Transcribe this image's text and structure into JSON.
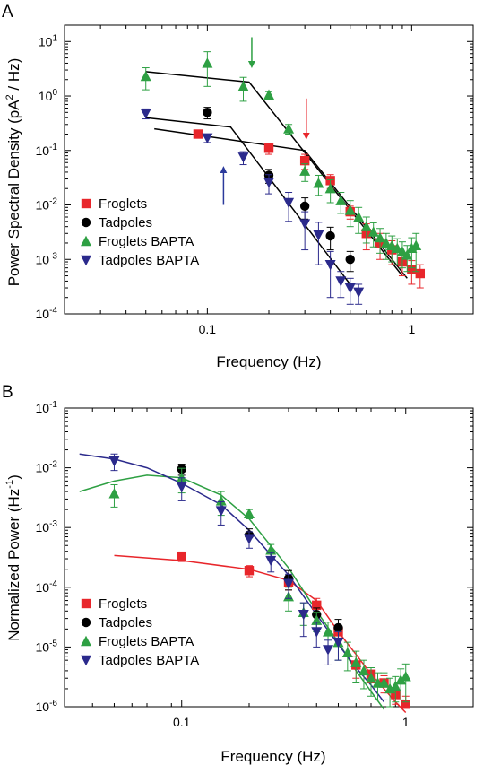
{
  "colors": {
    "froglets": "#e8262b",
    "tadpoles": "#000000",
    "froglets_bapta": "#2ea043",
    "tadpoles_bapta": "#2b2a8c",
    "fit_black": "#000000",
    "arrow_green": "#2ea043",
    "arrow_red": "#e8262b",
    "arrow_blue": "#2b3a9c"
  },
  "chart_data": [
    {
      "panel_letter": "A",
      "type": "scatter",
      "xscale": "log",
      "yscale": "log",
      "xlim": [
        0.02,
        2.0
      ],
      "ylim": [
        0.0001,
        20
      ],
      "xlabel": "Frequency (Hz)",
      "ylabel": "Power Spectral Density (pA",
      "ylabel_sup": "2",
      "ylabel_end": " / Hz)",
      "xticks": [
        {
          "v": 0.1,
          "label": "0.1"
        },
        {
          "v": 1,
          "label": "1"
        }
      ],
      "yticks": [
        {
          "v": 10,
          "base": "10",
          "exp": "1"
        },
        {
          "v": 1,
          "base": "10",
          "exp": "0"
        },
        {
          "v": 0.1,
          "base": "10",
          "exp": "-1"
        },
        {
          "v": 0.01,
          "base": "10",
          "exp": "-2"
        },
        {
          "v": 0.001,
          "base": "10",
          "exp": "-3"
        },
        {
          "v": 0.0001,
          "base": "10",
          "exp": "-4"
        }
      ],
      "legend_position": "bottom-left",
      "series": [
        {
          "name": "Froglets",
          "marker": "square",
          "color_key": "froglets",
          "x": [
            0.09,
            0.2,
            0.3,
            0.4,
            0.5,
            0.6,
            0.7,
            0.8,
            0.9,
            1.0,
            1.1
          ],
          "y": [
            0.2,
            0.11,
            0.065,
            0.028,
            0.0075,
            0.003,
            0.002,
            0.0015,
            0.0009,
            0.00065,
            0.00055
          ],
          "err": [
            0.03,
            0.025,
            0.02,
            0.008,
            0.002,
            0.0015,
            0.001,
            0.0007,
            0.0004,
            0.0003,
            0.00025
          ]
        },
        {
          "name": "Tadpoles",
          "marker": "circle",
          "color_key": "tadpoles",
          "x": [
            0.1,
            0.2,
            0.3,
            0.4,
            0.5
          ],
          "y": [
            0.5,
            0.035,
            0.0095,
            0.0027,
            0.001
          ],
          "err": [
            0.12,
            0.01,
            0.004,
            0.0012,
            0.0004
          ]
        },
        {
          "name": "Froglets BAPTA",
          "marker": "triangle-up",
          "color_key": "froglets_bapta",
          "x": [
            0.05,
            0.1,
            0.15,
            0.2,
            0.25,
            0.3,
            0.35,
            0.4,
            0.45,
            0.5,
            0.55,
            0.6,
            0.65,
            0.7,
            0.75,
            0.8,
            0.85,
            0.9,
            0.95,
            1.0,
            1.05
          ],
          "y": [
            2.3,
            4.0,
            1.5,
            1.05,
            0.25,
            0.042,
            0.025,
            0.02,
            0.012,
            0.008,
            0.006,
            0.004,
            0.0032,
            0.0025,
            0.002,
            0.0018,
            0.0016,
            0.0014,
            0.0012,
            0.0016,
            0.0018
          ],
          "err": [
            1.0,
            2.5,
            0.7,
            0.15,
            0.05,
            0.015,
            0.01,
            0.009,
            0.005,
            0.004,
            0.003,
            0.002,
            0.0015,
            0.0012,
            0.001,
            0.0009,
            0.0008,
            0.0007,
            0.0006,
            0.0009,
            0.0012
          ]
        },
        {
          "name": "Tadpoles BAPTA",
          "marker": "triangle-down",
          "color_key": "tadpoles_bapta",
          "x": [
            0.05,
            0.1,
            0.15,
            0.2,
            0.25,
            0.3,
            0.35,
            0.4,
            0.45,
            0.5,
            0.55
          ],
          "y": [
            0.48,
            0.17,
            0.075,
            0.026,
            0.011,
            0.0045,
            0.0028,
            0.0008,
            0.0004,
            0.0003,
            0.00025
          ],
          "err": [
            0.1,
            0.03,
            0.02,
            0.01,
            0.006,
            0.003,
            0.002,
            0.0006,
            0.0002,
            0.00015,
            0.0001
          ]
        }
      ],
      "fit_lines": [
        {
          "color_key": "fit_black",
          "points": [
            [
              0.05,
              2.8
            ],
            [
              0.16,
              1.8
            ],
            [
              0.9,
              0.0005
            ]
          ]
        },
        {
          "color_key": "fit_black",
          "points": [
            [
              0.05,
              0.4
            ],
            [
              0.13,
              0.27
            ],
            [
              0.5,
              0.00035
            ]
          ]
        },
        {
          "color_key": "fit_black",
          "points": [
            [
              0.055,
              0.25
            ],
            [
              0.3,
              0.1
            ],
            [
              0.95,
              0.00045
            ]
          ]
        }
      ],
      "arrows": [
        {
          "color_key": "arrow_green",
          "x": 0.165,
          "from_y": 12,
          "to_y": 3.5
        },
        {
          "color_key": "arrow_red",
          "x": 0.305,
          "from_y": 0.9,
          "to_y": 0.17
        },
        {
          "color_key": "arrow_blue",
          "x": 0.12,
          "from_y": 0.01,
          "to_y": 0.048
        }
      ]
    },
    {
      "panel_letter": "B",
      "type": "scatter",
      "xscale": "log",
      "yscale": "log",
      "xlim": [
        0.03,
        2.0
      ],
      "ylim": [
        1e-06,
        0.1
      ],
      "xlabel": "Frequency (Hz)",
      "ylabel": "Normalized Power (Hz",
      "ylabel_sup": "-1",
      "ylabel_end": ")",
      "xticks": [
        {
          "v": 0.1,
          "label": "0.1"
        },
        {
          "v": 1,
          "label": "1"
        }
      ],
      "yticks": [
        {
          "v": 0.1,
          "base": "10",
          "exp": "-1"
        },
        {
          "v": 0.01,
          "base": "10",
          "exp": "-2"
        },
        {
          "v": 0.001,
          "base": "10",
          "exp": "-3"
        },
        {
          "v": 0.0001,
          "base": "10",
          "exp": "-4"
        },
        {
          "v": 1e-05,
          "base": "10",
          "exp": "-5"
        },
        {
          "v": 1e-06,
          "base": "10",
          "exp": "-6"
        }
      ],
      "legend_position": "bottom-left",
      "series": [
        {
          "name": "Froglets",
          "marker": "square",
          "color_key": "froglets",
          "x": [
            0.1,
            0.2,
            0.3,
            0.4,
            0.5,
            0.6,
            0.7,
            0.8,
            0.9,
            1.0
          ],
          "y": [
            0.00033,
            0.00019,
            0.00012,
            5e-05,
            1.8e-05,
            5e-06,
            3.5e-06,
            2.5e-06,
            1.6e-06,
            1.1e-06
          ],
          "err": [
            6e-05,
            4e-05,
            3e-05,
            1.5e-05,
            5e-06,
            2e-06,
            1e-06,
            8e-07,
            5e-07,
            4e-07
          ]
        },
        {
          "name": "Tadpoles",
          "marker": "circle",
          "color_key": "tadpoles",
          "x": [
            0.1,
            0.2,
            0.3,
            0.4,
            0.5
          ],
          "y": [
            0.0095,
            0.00075,
            0.00014,
            3.5e-05,
            2.1e-05
          ],
          "err": [
            0.002,
            0.0002,
            5e-05,
            1e-05,
            8e-06
          ]
        },
        {
          "name": "Froglets BAPTA",
          "marker": "triangle-up",
          "color_key": "froglets_bapta",
          "x": [
            0.05,
            0.1,
            0.15,
            0.2,
            0.25,
            0.3,
            0.35,
            0.4,
            0.45,
            0.5,
            0.55,
            0.6,
            0.65,
            0.7,
            0.75,
            0.8,
            0.85,
            0.9,
            0.95,
            1.0
          ],
          "y": [
            0.0037,
            0.0068,
            0.0028,
            0.0017,
            0.00042,
            7e-05,
            3.8e-05,
            2.8e-05,
            1.8e-05,
            1.2e-05,
            8e-06,
            5.5e-06,
            4e-06,
            3e-06,
            2.5e-06,
            2.5e-06,
            2e-06,
            2.2e-06,
            2.8e-06,
            3.2e-06
          ],
          "err": [
            0.0015,
            0.003,
            0.0012,
            0.0003,
            0.0001,
            3e-05,
            1.5e-05,
            1e-05,
            8e-06,
            6e-06,
            4e-06,
            3e-06,
            2e-06,
            1.5e-06,
            1.2e-06,
            1.2e-06,
            1e-06,
            1e-06,
            1.5e-06,
            2e-06
          ]
        },
        {
          "name": "Tadpoles BAPTA",
          "marker": "triangle-down",
          "color_key": "tadpoles_bapta",
          "x": [
            0.05,
            0.1,
            0.15,
            0.2,
            0.25,
            0.3,
            0.35,
            0.4,
            0.45,
            0.5
          ],
          "y": [
            0.013,
            0.0048,
            0.0019,
            0.00065,
            0.00028,
            0.000115,
            3.5e-05,
            1.8e-05,
            9e-06,
            1.2e-05
          ],
          "err": [
            0.004,
            0.002,
            0.0008,
            0.0002,
            0.0001,
            5e-05,
            2e-05,
            8e-06,
            4e-06,
            6e-06
          ]
        }
      ],
      "fit_curves": [
        {
          "color_key": "froglets",
          "points": [
            [
              0.05,
              0.00034
            ],
            [
              0.1,
              0.00028
            ],
            [
              0.2,
              0.0002
            ],
            [
              0.3,
              0.00013
            ],
            [
              0.4,
              6e-05
            ],
            [
              0.5,
              1.8e-05
            ],
            [
              0.6,
              7.5e-06
            ],
            [
              0.7,
              3.5e-06
            ],
            [
              0.8,
              2e-06
            ],
            [
              0.9,
              1.2e-06
            ],
            [
              1.0,
              8e-07
            ]
          ]
        },
        {
          "color_key": "froglets_bapta",
          "points": [
            [
              0.035,
              0.004
            ],
            [
              0.05,
              0.006
            ],
            [
              0.07,
              0.0075
            ],
            [
              0.1,
              0.0068
            ],
            [
              0.15,
              0.0035
            ],
            [
              0.2,
              0.0014
            ],
            [
              0.3,
              0.00021
            ],
            [
              0.4,
              4e-05
            ],
            [
              0.5,
              1.2e-05
            ],
            [
              0.6,
              4e-06
            ],
            [
              0.7,
              1.8e-06
            ],
            [
              0.8,
              9e-07
            ]
          ]
        },
        {
          "color_key": "tadpoles_bapta",
          "points": [
            [
              0.035,
              0.017
            ],
            [
              0.05,
              0.014
            ],
            [
              0.07,
              0.01
            ],
            [
              0.1,
              0.0055
            ],
            [
              0.15,
              0.0024
            ],
            [
              0.2,
              0.0009
            ],
            [
              0.3,
              0.00016
            ],
            [
              0.4,
              3.5e-05
            ],
            [
              0.5,
              1.1e-05
            ],
            [
              0.6,
              4.5e-06
            ],
            [
              0.7,
              2.3e-06
            ],
            [
              0.8,
              1.2e-06
            ]
          ]
        }
      ]
    }
  ]
}
